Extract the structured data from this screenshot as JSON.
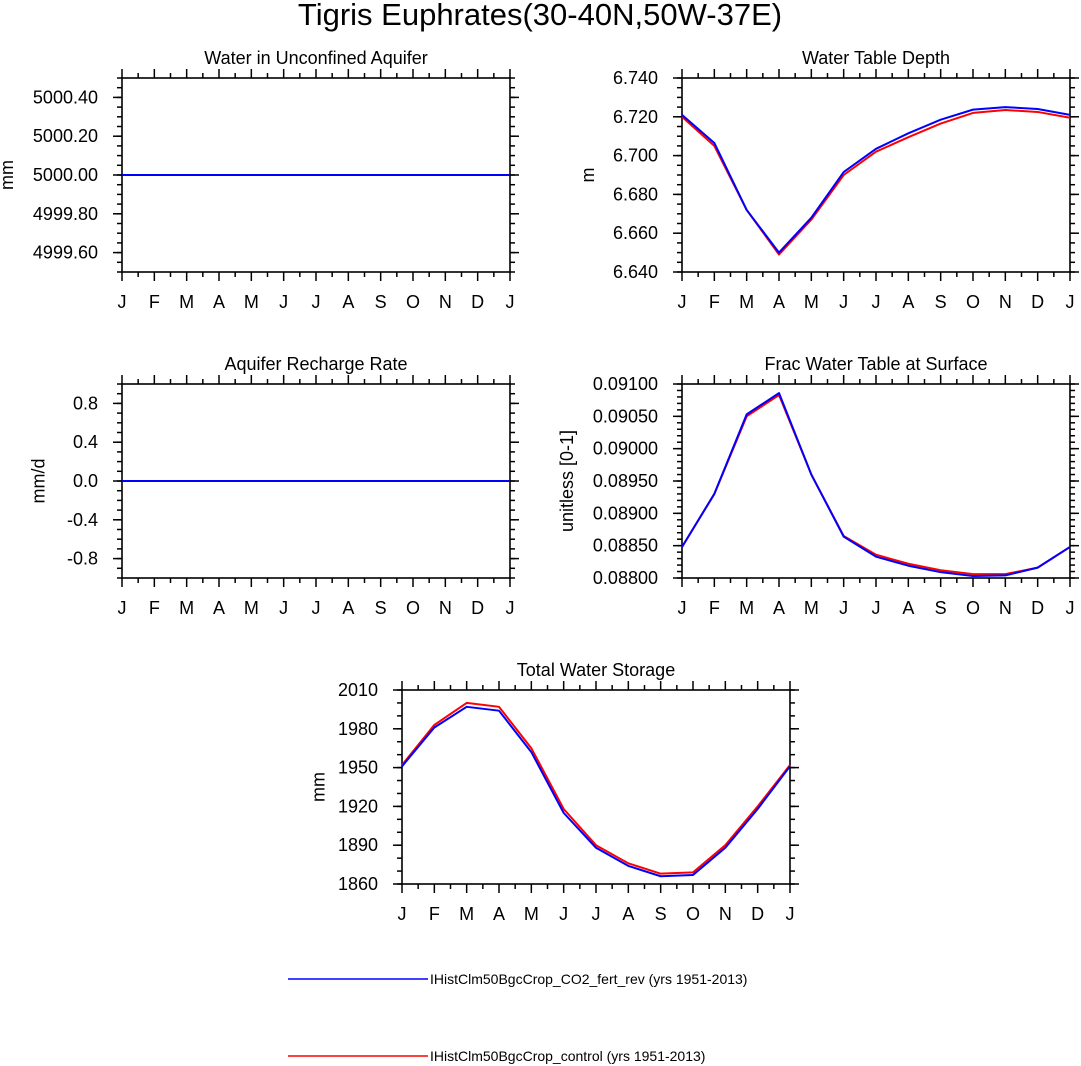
{
  "figure": {
    "title": "Tigris Euphrates(30-40N,50W-37E)"
  },
  "legend": {
    "entries": [
      {
        "label": "IHistClm50BgcCrop_CO2_fert_rev (yrs 1951-2013)",
        "color": "#0000ff"
      },
      {
        "label": "IHistClm50BgcCrop_control (yrs 1951-2013)",
        "color": "#ff0000"
      }
    ]
  },
  "chart_data": [
    {
      "type": "line",
      "title": "Water in Unconfined Aquifer",
      "ylabel": "mm",
      "xticks": [
        "J",
        "F",
        "M",
        "A",
        "M",
        "J",
        "J",
        "A",
        "S",
        "O",
        "N",
        "D",
        "J"
      ],
      "ylim": [
        4999.5,
        5000.5
      ],
      "yticks": [
        4999.6,
        4999.8,
        5000.0,
        5000.2,
        5000.4
      ],
      "ytick_labels": [
        "4999.60",
        "4999.80",
        "5000.00",
        "5000.20",
        "5000.40"
      ],
      "yminor": 0.05,
      "series": [
        {
          "name": "IHistClm50BgcCrop_control (yrs 1951-2013)",
          "color": "#ff0000",
          "values": [
            5000,
            5000,
            5000,
            5000,
            5000,
            5000,
            5000,
            5000,
            5000,
            5000,
            5000,
            5000,
            5000
          ]
        },
        {
          "name": "IHistClm50BgcCrop_CO2_fert_rev (yrs 1951-2013)",
          "color": "#0000ff",
          "values": [
            5000,
            5000,
            5000,
            5000,
            5000,
            5000,
            5000,
            5000,
            5000,
            5000,
            5000,
            5000,
            5000
          ]
        }
      ]
    },
    {
      "type": "line",
      "title": "Water Table Depth",
      "ylabel": "m",
      "xticks": [
        "J",
        "F",
        "M",
        "A",
        "M",
        "J",
        "J",
        "A",
        "S",
        "O",
        "N",
        "D",
        "J"
      ],
      "ylim": [
        6.64,
        6.74
      ],
      "yticks": [
        6.64,
        6.66,
        6.68,
        6.7,
        6.72,
        6.74
      ],
      "ytick_labels": [
        "6.640",
        "6.660",
        "6.680",
        "6.700",
        "6.720",
        "6.740"
      ],
      "yminor": 0.005,
      "series": [
        {
          "name": "IHistClm50BgcCrop_control (yrs 1951-2013)",
          "color": "#ff0000",
          "values": [
            6.72,
            6.705,
            6.672,
            6.649,
            6.667,
            6.69,
            6.702,
            6.7095,
            6.7165,
            6.722,
            6.7235,
            6.7225,
            6.7195
          ]
        },
        {
          "name": "IHistClm50BgcCrop_CO2_fert_rev (yrs 1951-2013)",
          "color": "#0000ff",
          "values": [
            6.721,
            6.7065,
            6.672,
            6.65,
            6.668,
            6.6915,
            6.7035,
            6.7115,
            6.7185,
            6.7237,
            6.725,
            6.724,
            6.721
          ]
        }
      ]
    },
    {
      "type": "line",
      "title": "Aquifer Recharge Rate",
      "ylabel": "mm/d",
      "xticks": [
        "J",
        "F",
        "M",
        "A",
        "M",
        "J",
        "J",
        "A",
        "S",
        "O",
        "N",
        "D",
        "J"
      ],
      "ylim": [
        -1.0,
        1.0
      ],
      "yticks": [
        -0.8,
        -0.4,
        0.0,
        0.4,
        0.8
      ],
      "ytick_labels": [
        "-0.8",
        "-0.4",
        "0.0",
        "0.4",
        "0.8"
      ],
      "yminor": 0.1,
      "series": [
        {
          "name": "IHistClm50BgcCrop_control (yrs 1951-2013)",
          "color": "#ff0000",
          "values": [
            0,
            0,
            0,
            0,
            0,
            0,
            0,
            0,
            0,
            0,
            0,
            0,
            0
          ]
        },
        {
          "name": "IHistClm50BgcCrop_CO2_fert_rev (yrs 1951-2013)",
          "color": "#0000ff",
          "values": [
            0,
            0,
            0,
            0,
            0,
            0,
            0,
            0,
            0,
            0,
            0,
            0,
            0
          ]
        }
      ]
    },
    {
      "type": "line",
      "title": "Frac Water Table at Surface",
      "ylabel": "unitless [0-1]",
      "xticks": [
        "J",
        "F",
        "M",
        "A",
        "M",
        "J",
        "J",
        "A",
        "S",
        "O",
        "N",
        "D",
        "J"
      ],
      "ylim": [
        0.088,
        0.091
      ],
      "yticks": [
        0.088,
        0.0885,
        0.089,
        0.0895,
        0.09,
        0.0905,
        0.091
      ],
      "ytick_labels": [
        "0.08800",
        "0.08850",
        "0.08900",
        "0.08950",
        "0.09000",
        "0.09050",
        "0.09100"
      ],
      "yminor": 0.0001,
      "series": [
        {
          "name": "IHistClm50BgcCrop_control (yrs 1951-2013)",
          "color": "#ff0000",
          "values": [
            0.08848,
            0.0893,
            0.0905,
            0.09083,
            0.0896,
            0.08865,
            0.08836,
            0.08822,
            0.08812,
            0.08806,
            0.08806,
            0.08816,
            0.08848
          ]
        },
        {
          "name": "IHistClm50BgcCrop_CO2_fert_rev (yrs 1951-2013)",
          "color": "#0000ff",
          "values": [
            0.08848,
            0.0893,
            0.09053,
            0.09086,
            0.0896,
            0.08864,
            0.08833,
            0.08819,
            0.08809,
            0.08803,
            0.08804,
            0.08816,
            0.08848
          ]
        }
      ]
    },
    {
      "type": "line",
      "title": "Total Water Storage",
      "ylabel": "mm",
      "xticks": [
        "J",
        "F",
        "M",
        "A",
        "M",
        "J",
        "J",
        "A",
        "S",
        "O",
        "N",
        "D",
        "J"
      ],
      "ylim": [
        1860,
        2010
      ],
      "yticks": [
        1860,
        1890,
        1920,
        1950,
        1980,
        2010
      ],
      "ytick_labels": [
        "1860",
        "1890",
        "1920",
        "1950",
        "1980",
        "2010"
      ],
      "yminor": 10,
      "series": [
        {
          "name": "IHistClm50BgcCrop_control (yrs 1951-2013)",
          "color": "#ff0000",
          "values": [
            1952,
            1983,
            2000,
            1997,
            1965,
            1918,
            1890,
            1876,
            1868,
            1869,
            1890,
            1920,
            1952
          ]
        },
        {
          "name": "IHistClm50BgcCrop_CO2_fert_rev (yrs 1951-2013)",
          "color": "#0000ff",
          "values": [
            1951,
            1981,
            1997,
            1994,
            1962,
            1915,
            1888,
            1874,
            1866,
            1867,
            1888,
            1918,
            1951
          ]
        }
      ]
    }
  ]
}
